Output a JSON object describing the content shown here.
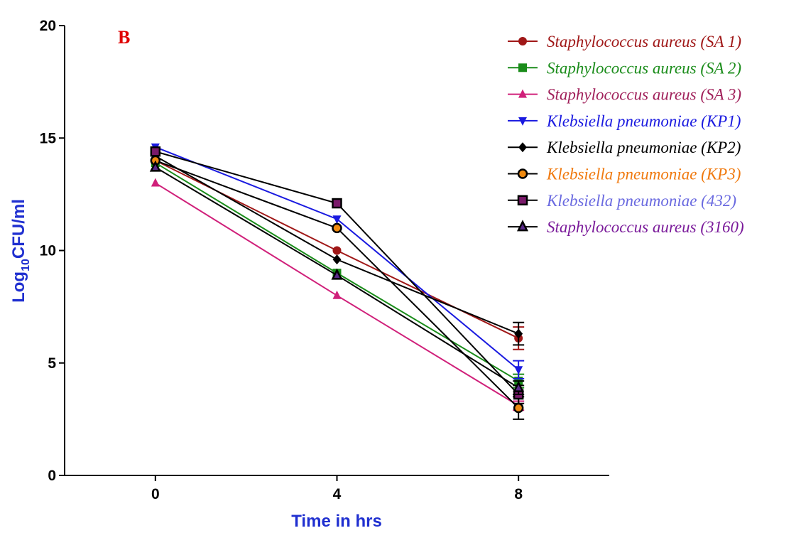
{
  "chart_data": {
    "type": "line",
    "panel_label": "B",
    "panel_label_color": "#e00000",
    "xlabel": "Time in hrs",
    "ylabel": "Log10CFU/ml",
    "ylabel_parts": {
      "main": "Log",
      "sub": "10",
      "rest": "CFU/ml"
    },
    "axis_title_color": "#1f2fd0",
    "x": [
      0,
      4,
      8
    ],
    "xlim": [
      -2,
      10
    ],
    "ylim": [
      0,
      20
    ],
    "x_ticks": [
      0,
      4,
      8
    ],
    "y_ticks": [
      0,
      5,
      10,
      15,
      20
    ],
    "grid": false,
    "legend_position": "top-right",
    "series": [
      {
        "name": "Staphylococcus aureus (SA 1)",
        "values": [
          14.0,
          10.0,
          6.1
        ],
        "errors": [
          0,
          0,
          0.5
        ],
        "color": "#a01818",
        "marker": "circle",
        "text_color": "#a01818"
      },
      {
        "name": "Staphylococcus aureus (SA 2)",
        "values": [
          13.9,
          9.0,
          4.2
        ],
        "errors": [
          0,
          0,
          0.3
        ],
        "color": "#1a8c1a",
        "marker": "square",
        "text_color": "#1a8c1a"
      },
      {
        "name": "Staphylococcus aureus (SA 3)",
        "values": [
          13.0,
          8.0,
          3.1
        ],
        "errors": [
          0,
          0,
          0.2
        ],
        "color": "#d0207a",
        "marker": "triangle-up",
        "text_color": "#a0205a"
      },
      {
        "name": "Klebsiella pneumoniae (KP1)",
        "values": [
          14.6,
          11.4,
          4.7
        ],
        "errors": [
          0,
          0,
          0.4
        ],
        "color": "#1a1ae0",
        "marker": "triangle-down",
        "text_color": "#1a1ae0"
      },
      {
        "name": "Klebsiella pneumoniae (KP2)",
        "values": [
          14.2,
          9.6,
          6.3
        ],
        "errors": [
          0,
          0,
          0.5
        ],
        "color": "#000000",
        "marker": "diamond",
        "text_color": "#000000"
      },
      {
        "name": "Klebsiella pneumoniae (KP3)",
        "values": [
          14.0,
          11.0,
          3.0
        ],
        "errors": [
          0,
          0,
          0.5
        ],
        "color": "#000000",
        "marker": "circle-orange",
        "text_color": "#f07a10"
      },
      {
        "name": "Klebsiella pneumoniae  (432)",
        "values": [
          14.4,
          12.1,
          3.6
        ],
        "errors": [
          0,
          0,
          0.4
        ],
        "color": "#000000",
        "marker": "square-purple",
        "text_color": "#6a6ae0"
      },
      {
        "name": "Staphylococcus aureus  (3160)",
        "values": [
          13.7,
          8.9,
          3.9
        ],
        "errors": [
          0,
          0,
          0.3
        ],
        "color": "#000000",
        "marker": "triangle-purple",
        "text_color": "#7a1a9a"
      }
    ]
  }
}
